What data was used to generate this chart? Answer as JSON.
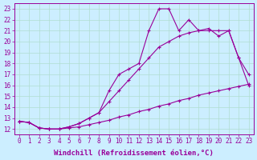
{
  "line1_x": [
    0,
    1,
    2,
    3,
    4,
    5,
    6,
    7,
    8,
    9,
    10,
    11,
    12,
    13,
    14,
    15,
    16,
    17,
    18,
    19,
    20,
    21,
    22,
    23
  ],
  "line1_y": [
    12.7,
    12.6,
    12.1,
    12.0,
    12.0,
    12.1,
    12.2,
    12.4,
    12.6,
    12.8,
    13.1,
    13.3,
    13.6,
    13.8,
    14.1,
    14.3,
    14.6,
    14.8,
    15.1,
    15.3,
    15.5,
    15.7,
    15.9,
    16.1
  ],
  "line2_x": [
    0,
    1,
    2,
    3,
    4,
    5,
    6,
    7,
    8,
    9,
    10,
    11,
    12,
    13,
    14,
    15,
    16,
    17,
    18,
    19,
    20,
    21,
    22,
    23
  ],
  "line2_y": [
    12.7,
    12.6,
    12.1,
    12.0,
    12.0,
    12.2,
    12.5,
    13.0,
    13.5,
    14.5,
    15.5,
    16.5,
    17.5,
    18.5,
    19.5,
    20.0,
    20.5,
    20.8,
    21.0,
    21.2,
    20.5,
    21.0,
    18.5,
    16.0
  ],
  "line3_x": [
    0,
    1,
    2,
    3,
    4,
    5,
    6,
    7,
    8,
    9,
    10,
    11,
    12,
    13,
    14,
    15,
    16,
    17,
    18,
    19,
    20,
    21,
    22,
    23
  ],
  "line3_y": [
    12.7,
    12.6,
    12.1,
    12.0,
    12.0,
    12.2,
    12.5,
    13.0,
    13.5,
    15.5,
    17.0,
    17.5,
    18.0,
    21.0,
    23.0,
    23.0,
    21.0,
    22.0,
    21.0,
    21.0,
    21.0,
    21.0,
    18.5,
    17.0
  ],
  "line_color": "#990099",
  "marker": "+",
  "markersize": 3,
  "linewidth": 0.8,
  "xlabel": "Windchill (Refroidissement éolien,°C)",
  "xlabel_fontsize": 6.5,
  "ylabel_ticks": [
    12,
    13,
    14,
    15,
    16,
    17,
    18,
    19,
    20,
    21,
    22,
    23
  ],
  "xticks": [
    0,
    1,
    2,
    3,
    4,
    5,
    6,
    7,
    8,
    9,
    10,
    11,
    12,
    13,
    14,
    15,
    16,
    17,
    18,
    19,
    20,
    21,
    22,
    23
  ],
  "ylim": [
    11.5,
    23.5
  ],
  "xlim": [
    -0.5,
    23.5
  ],
  "bg_color": "#cceeff",
  "grid_color": "#b0ddd0",
  "tick_fontsize": 5.5
}
